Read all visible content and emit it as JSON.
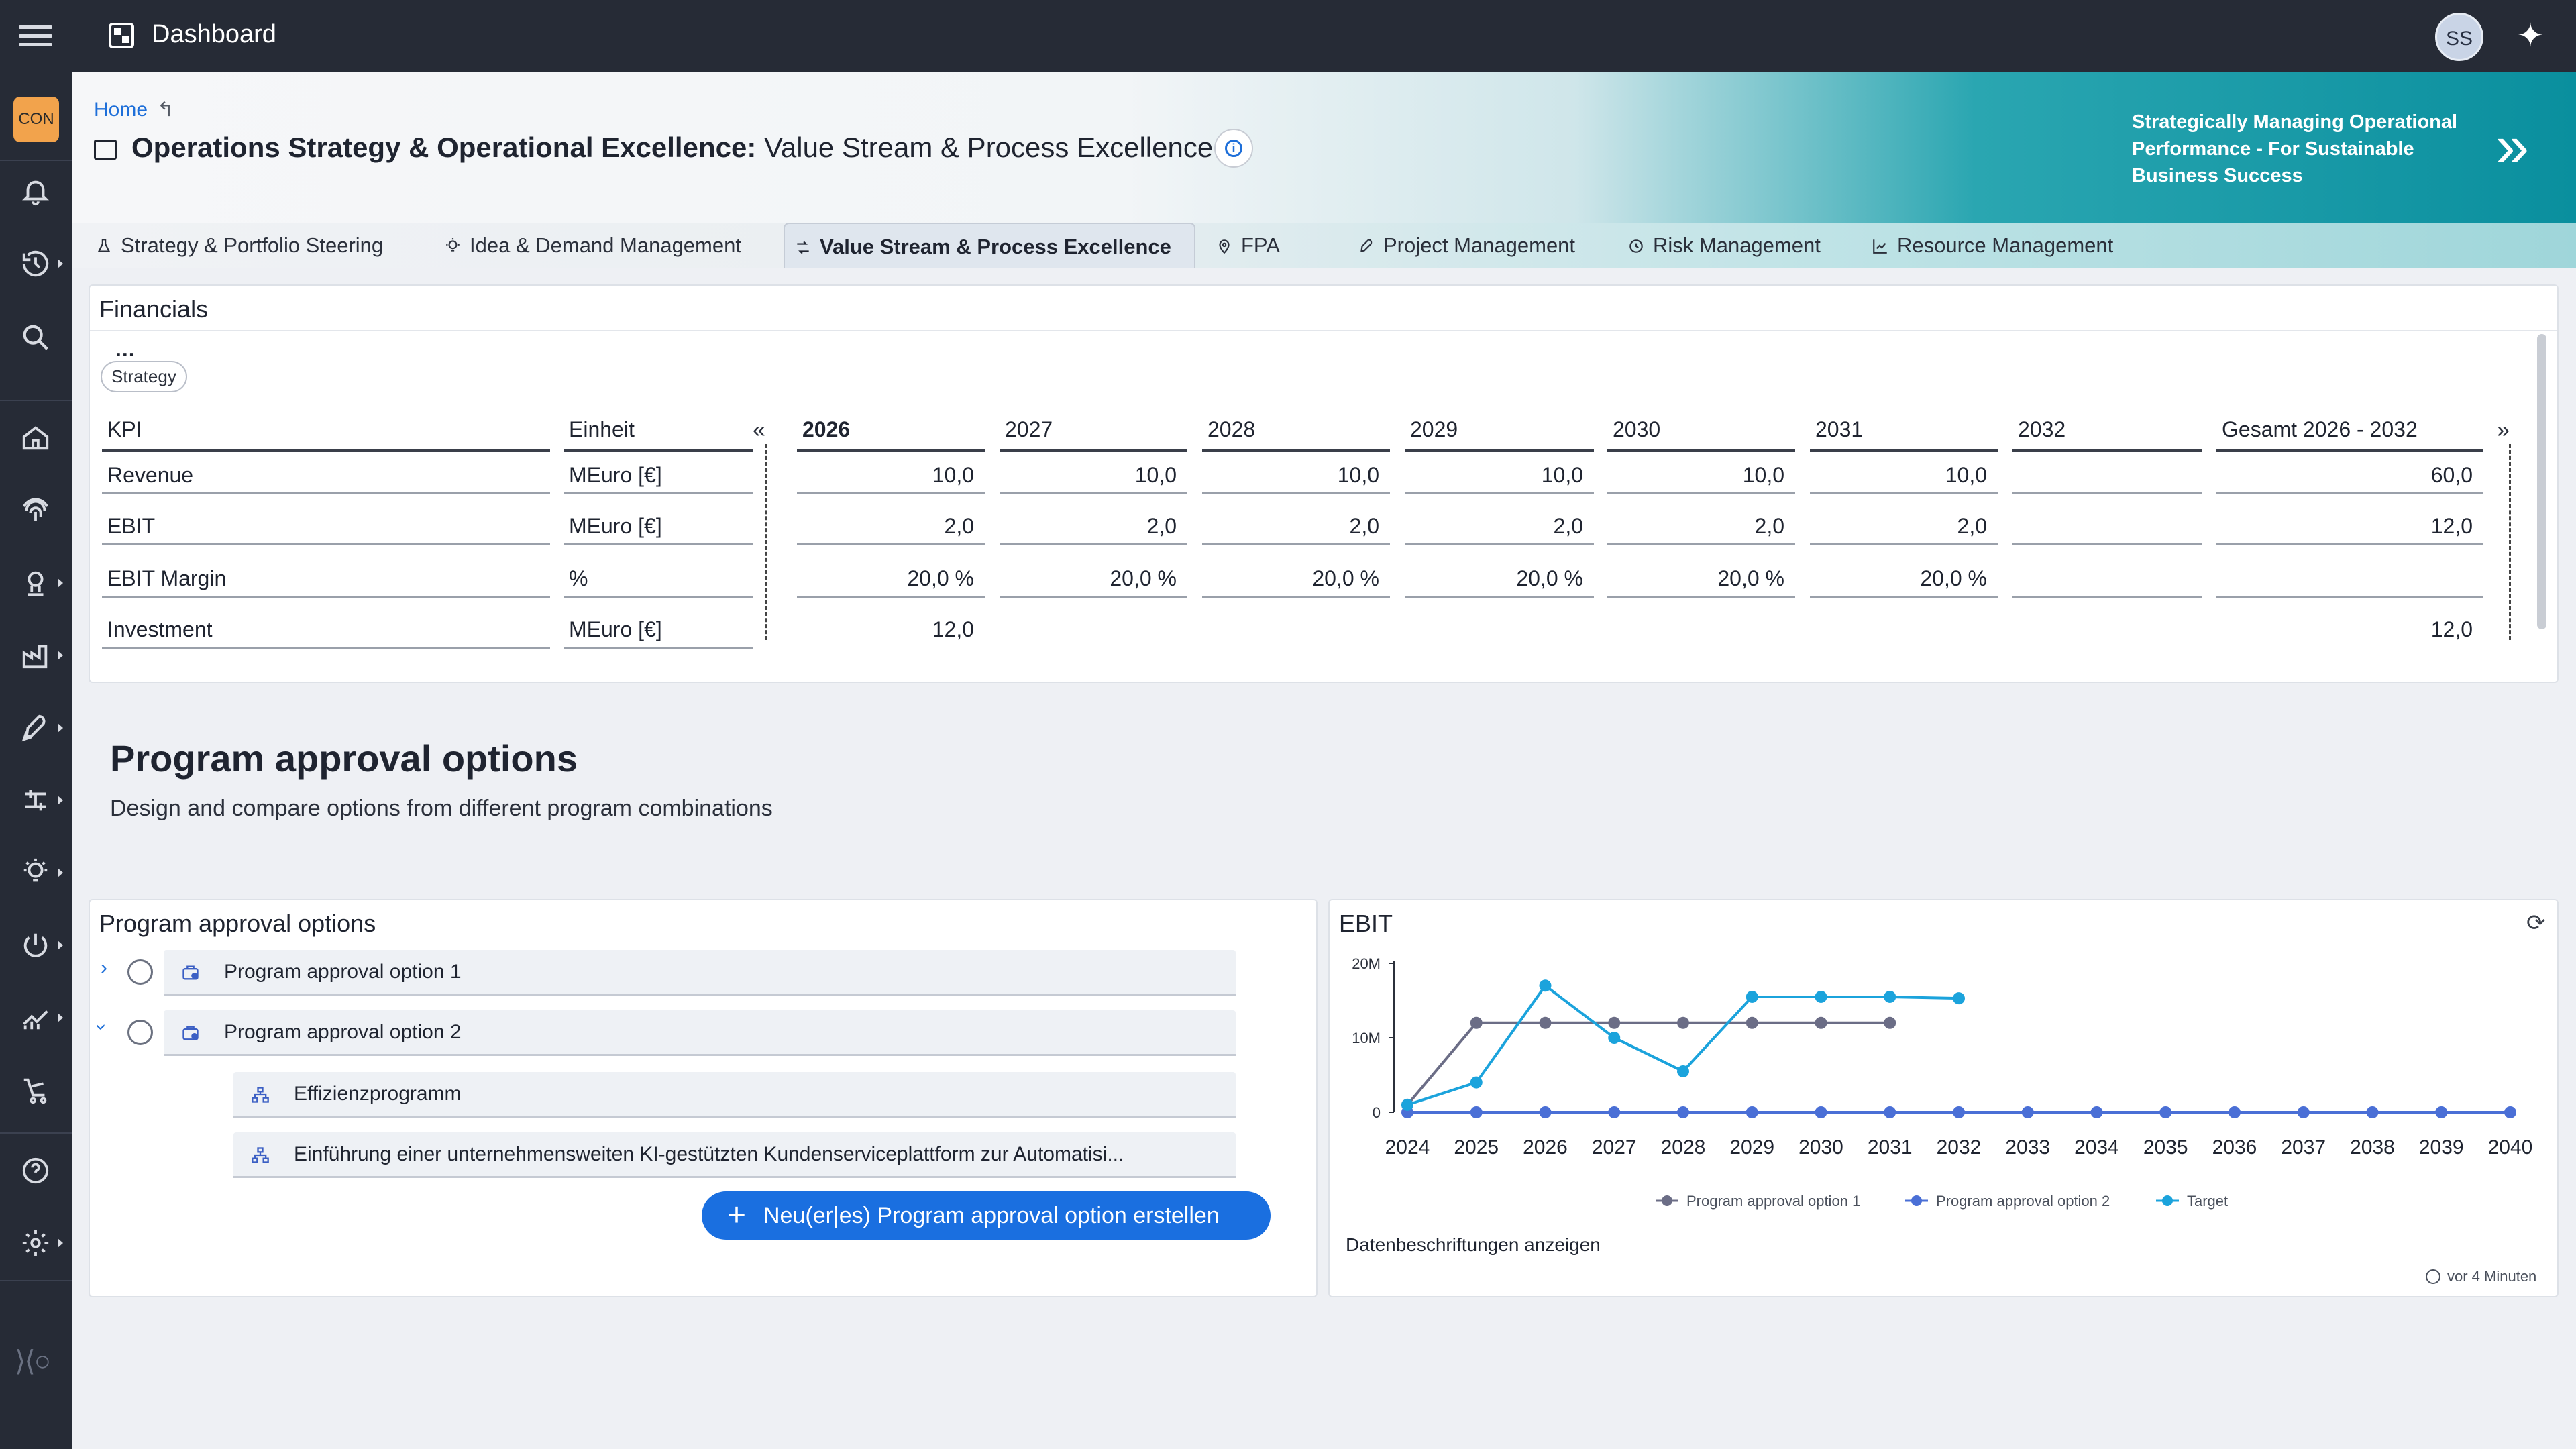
{
  "app": {
    "title": "Dashboard",
    "user_initials": "SS",
    "workspace_badge": "CON"
  },
  "breadcrumb": {
    "home": "Home"
  },
  "page": {
    "title_bold": "Operations Strategy & Operational Excellence:",
    "title_rest": "Value Stream & Process Excellence",
    "promo": "Strategically Managing Operational Performance - For Sustainable Business Success"
  },
  "tabs": [
    {
      "label": "Strategy & Portfolio Steering",
      "icon": "flask-icon"
    },
    {
      "label": "Idea & Demand Management",
      "icon": "lightbulb-icon"
    },
    {
      "label": "Value Stream & Process Excellence",
      "icon": "flow-icon",
      "active": true
    },
    {
      "label": "FPA",
      "icon": "pin-icon"
    },
    {
      "label": "Project Management",
      "icon": "rocket-icon"
    },
    {
      "label": "Risk Management",
      "icon": "risk-icon"
    },
    {
      "label": "Resource Management",
      "icon": "chart-icon"
    }
  ],
  "financials": {
    "title": "Financials",
    "more": "...",
    "filter_chip": "Strategy",
    "prev": "«",
    "next": "»",
    "headers": [
      "KPI",
      "Einheit",
      "2026",
      "2027",
      "2028",
      "2029",
      "2030",
      "2031",
      "2032",
      "Gesamt 2026 - 2032"
    ],
    "rows": [
      {
        "kpi": "Revenue",
        "unit": "MEuro [€]",
        "values": [
          "10,0",
          "10,0",
          "10,0",
          "10,0",
          "10,0",
          "10,0",
          "",
          "60,0"
        ]
      },
      {
        "kpi": "EBIT",
        "unit": "MEuro [€]",
        "values": [
          "2,0",
          "2,0",
          "2,0",
          "2,0",
          "2,0",
          "2,0",
          "",
          "12,0"
        ]
      },
      {
        "kpi": "EBIT Margin",
        "unit": "%",
        "values": [
          "20,0 %",
          "20,0 %",
          "20,0 %",
          "20,0 %",
          "20,0 %",
          "20,0 %",
          "",
          ""
        ]
      },
      {
        "kpi": "Investment",
        "unit": "MEuro [€]",
        "values": [
          "12,0",
          "",
          "",
          "",
          "",
          "",
          "",
          "12,0"
        ]
      }
    ]
  },
  "section": {
    "title": "Program approval options",
    "subtitle": "Design and compare options from different program combinations"
  },
  "options_card": {
    "title": "Program approval options",
    "options": [
      {
        "label": "Program approval option 1",
        "expanded": false
      },
      {
        "label": "Program approval option 2",
        "expanded": true
      }
    ],
    "children": [
      {
        "label": "Effizienzprogramm"
      },
      {
        "label": "Einführung einer unternehmensweiten KI-gestützten Kundenserviceplattform zur Automatisi..."
      }
    ],
    "create_button": "Neu(er|es) Program approval option erstellen"
  },
  "ebit_card": {
    "title": "EBIT",
    "data_labels_toggle": "Datenbeschriftungen anzeigen",
    "updated": "vor 4 Minuten"
  },
  "chart_data": {
    "type": "line",
    "title": "EBIT",
    "x": [
      "2024",
      "2025",
      "2026",
      "2027",
      "2028",
      "2029",
      "2030",
      "2031",
      "2032",
      "2033",
      "2034",
      "2035",
      "2036",
      "2037",
      "2038",
      "2039",
      "2040"
    ],
    "y_ticks": [
      "0",
      "10M",
      "20M"
    ],
    "ylim": [
      0,
      20000000
    ],
    "legend_position": "bottom",
    "series": [
      {
        "name": "Program approval option 1",
        "color": "#6b6d86",
        "values": [
          1000000,
          12000000,
          12000000,
          12000000,
          12000000,
          12000000,
          12000000,
          12000000,
          null,
          null,
          null,
          null,
          null,
          null,
          null,
          null,
          null
        ]
      },
      {
        "name": "Program approval option 2",
        "color": "#4a6fd6",
        "values": [
          0,
          0,
          0,
          0,
          0,
          0,
          0,
          0,
          0,
          0,
          0,
          0,
          0,
          0,
          0,
          0,
          0
        ]
      },
      {
        "name": "Target",
        "color": "#1ba3dc",
        "values": [
          1000000,
          4000000,
          17000000,
          10000000,
          5500000,
          15500000,
          15500000,
          15500000,
          15300000,
          null,
          null,
          null,
          null,
          null,
          null,
          null,
          null
        ]
      }
    ]
  }
}
